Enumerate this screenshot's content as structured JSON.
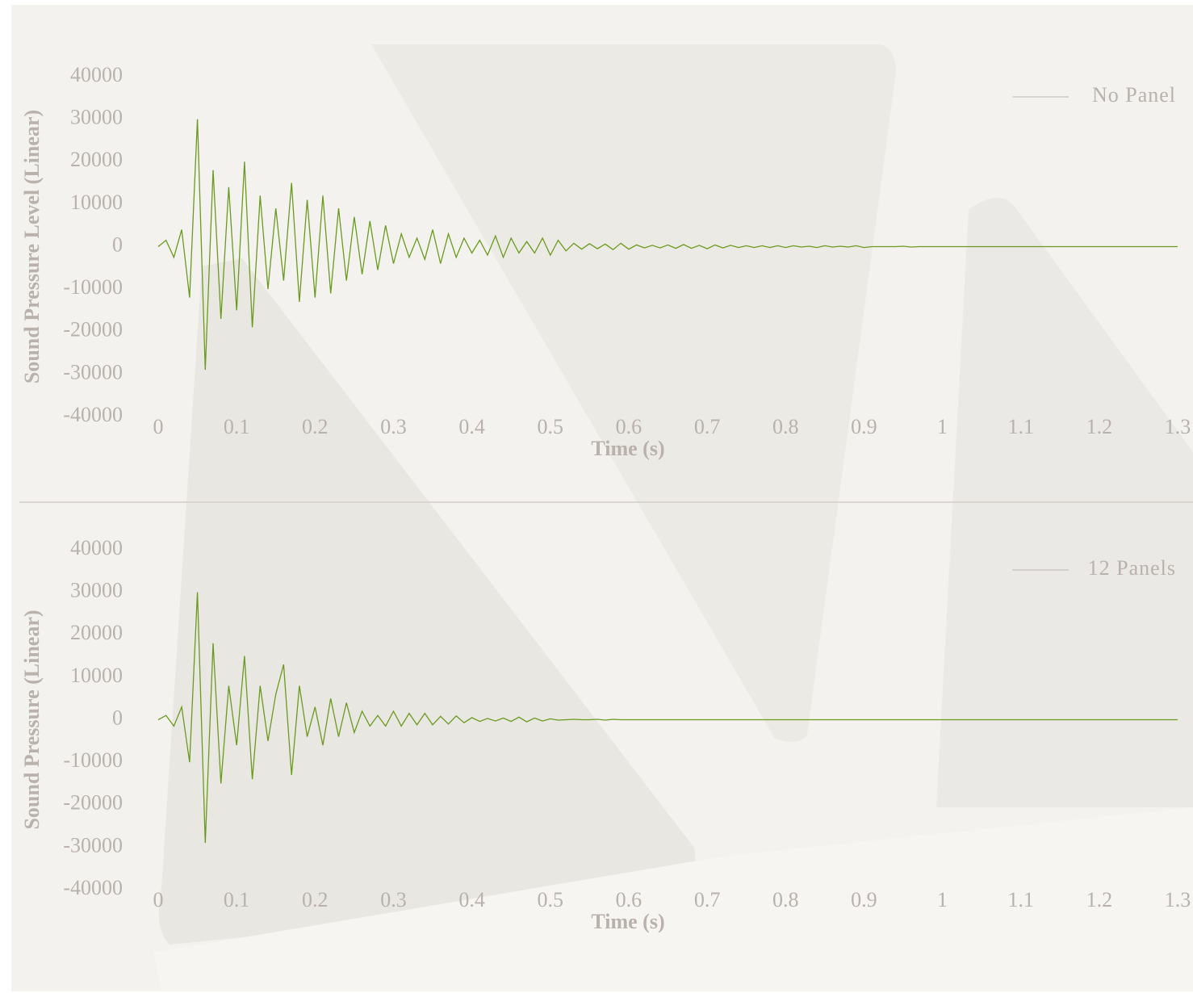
{
  "chart_data": [
    {
      "type": "line",
      "x_label": "Time (s)",
      "y_label": "Sound Pressure Level (Linear)",
      "legend": "upper right",
      "x": [
        0,
        0.01,
        0.02,
        0.03,
        0.04,
        0.05,
        0.06,
        0.07,
        0.08,
        0.09,
        0.1,
        0.11,
        0.12,
        0.13,
        0.14,
        0.15,
        0.16,
        0.17,
        0.18,
        0.19,
        0.2,
        0.21,
        0.22,
        0.23,
        0.24,
        0.25,
        0.26,
        0.27,
        0.28,
        0.29,
        0.3,
        0.31,
        0.32,
        0.33,
        0.34,
        0.35,
        0.36,
        0.37,
        0.38,
        0.39,
        0.4,
        0.41,
        0.42,
        0.43,
        0.44,
        0.45,
        0.46,
        0.47,
        0.48,
        0.49,
        0.5,
        0.51,
        0.52,
        0.53,
        0.54,
        0.55,
        0.56,
        0.57,
        0.58,
        0.59,
        0.6,
        0.61,
        0.62,
        0.63,
        0.64,
        0.65,
        0.66,
        0.67,
        0.68,
        0.69,
        0.7,
        0.71,
        0.72,
        0.73,
        0.74,
        0.75,
        0.76,
        0.77,
        0.78,
        0.79,
        0.8,
        0.81,
        0.82,
        0.83,
        0.84,
        0.85,
        0.86,
        0.87,
        0.88,
        0.89,
        0.9,
        0.91,
        0.92,
        0.93,
        0.94,
        0.95,
        0.96,
        0.97,
        0.98,
        0.99,
        1,
        1.1,
        1.2,
        1.3
      ],
      "series": [
        {
          "name": "No Panel",
          "color": "#6a9a1f",
          "values": [
            0,
            1500,
            -2500,
            4000,
            -12000,
            30000,
            -29000,
            18000,
            -17000,
            14000,
            -15000,
            20000,
            -19000,
            12000,
            -10000,
            9000,
            -8000,
            15000,
            -13000,
            11000,
            -12000,
            12000,
            -11000,
            9000,
            -8000,
            7000,
            -6500,
            6000,
            -5500,
            5000,
            -4000,
            3000,
            -2500,
            2000,
            -3000,
            4000,
            -4000,
            3000,
            -2500,
            2000,
            -1500,
            1500,
            -2000,
            2500,
            -2500,
            2000,
            -1500,
            1200,
            -1500,
            2000,
            -2000,
            1500,
            -1000,
            800,
            -600,
            700,
            -500,
            600,
            -700,
            800,
            -600,
            400,
            -300,
            300,
            -300,
            400,
            -400,
            500,
            -400,
            300,
            -500,
            400,
            -300,
            300,
            -200,
            200,
            -200,
            200,
            -200,
            200,
            -200,
            200,
            -100,
            100,
            -200,
            200,
            -100,
            100,
            -100,
            200,
            -200,
            0,
            0,
            0,
            0,
            100,
            -100,
            0,
            0,
            0,
            0,
            0,
            0,
            0
          ]
        }
      ],
      "xlim": [
        0,
        1.3
      ],
      "ylim": [
        -40000,
        40000
      ],
      "xticks": [
        0,
        0.1,
        0.2,
        0.3,
        0.4,
        0.5,
        0.6,
        0.7,
        0.8,
        0.9,
        1,
        1.1,
        1.2,
        1.3
      ],
      "yticks": [
        40000,
        30000,
        20000,
        10000,
        0,
        -10000,
        -20000,
        -30000,
        -40000
      ]
    },
    {
      "type": "line",
      "x_label": "Time (s)",
      "y_label": "Sound Pressure (Linear)",
      "legend": "upper right",
      "x": [
        0,
        0.01,
        0.02,
        0.03,
        0.04,
        0.05,
        0.06,
        0.07,
        0.08,
        0.09,
        0.1,
        0.11,
        0.12,
        0.13,
        0.14,
        0.15,
        0.16,
        0.17,
        0.18,
        0.19,
        0.2,
        0.21,
        0.22,
        0.23,
        0.24,
        0.25,
        0.26,
        0.27,
        0.28,
        0.29,
        0.3,
        0.31,
        0.32,
        0.33,
        0.34,
        0.35,
        0.36,
        0.37,
        0.38,
        0.39,
        0.4,
        0.41,
        0.42,
        0.43,
        0.44,
        0.45,
        0.46,
        0.47,
        0.48,
        0.49,
        0.5,
        0.51,
        0.52,
        0.53,
        0.54,
        0.55,
        0.56,
        0.57,
        0.58,
        0.59,
        0.6,
        0.7,
        0.8,
        0.9,
        1,
        1.1,
        1.2,
        1.3
      ],
      "series": [
        {
          "name": "12 Panels",
          "color": "#6a9a1f",
          "values": [
            0,
            1000,
            -1500,
            3000,
            -10000,
            30000,
            -29000,
            18000,
            -15000,
            8000,
            -6000,
            15000,
            -14000,
            8000,
            -5000,
            6000,
            13000,
            -13000,
            8000,
            -4000,
            3000,
            -6000,
            5000,
            -4000,
            4000,
            -3000,
            2000,
            -1500,
            1000,
            -1500,
            2000,
            -1500,
            1500,
            -1200,
            1500,
            -1200,
            800,
            -1000,
            900,
            -700,
            500,
            -400,
            300,
            -300,
            400,
            -400,
            600,
            -500,
            400,
            -300,
            200,
            -100,
            0,
            100,
            0,
            0,
            100,
            -100,
            100,
            0,
            0,
            0,
            0,
            0,
            0,
            0,
            0,
            0
          ]
        }
      ],
      "xlim": [
        0,
        1.3
      ],
      "ylim": [
        -40000,
        40000
      ],
      "xticks": [
        0,
        0.1,
        0.2,
        0.3,
        0.4,
        0.5,
        0.6,
        0.7,
        0.8,
        0.9,
        1,
        1.1,
        1.2,
        1.3
      ],
      "yticks": [
        40000,
        30000,
        20000,
        10000,
        0,
        -10000,
        -20000,
        -30000,
        -40000
      ]
    }
  ]
}
